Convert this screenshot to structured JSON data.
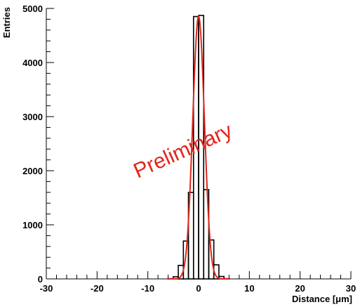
{
  "chart_data": {
    "type": "bar",
    "xlabel": "Distance [μm]",
    "ylabel": "Entries",
    "xlim": [
      -30,
      30
    ],
    "ylim": [
      0,
      5000
    ],
    "xticks": [
      -30,
      -20,
      -10,
      0,
      10,
      20,
      30
    ],
    "xtick_labels": [
      "-30",
      "-20",
      "-10",
      "0",
      "10",
      "20",
      "30"
    ],
    "yticks": [
      0,
      1000,
      2000,
      3000,
      4000,
      5000
    ],
    "ytick_labels": [
      "0",
      "1000",
      "2000",
      "3000",
      "4000",
      "5000"
    ],
    "grid": false,
    "annotation": "Preliminary",
    "series": [
      {
        "style": "histogram",
        "color": "#000000",
        "bin_edges": [
          -6,
          -5,
          -4,
          -3,
          -2,
          -1,
          0,
          1,
          2,
          3,
          4,
          5,
          6
        ],
        "values": [
          5,
          40,
          250,
          700,
          1600,
          4850,
          4870,
          1650,
          720,
          260,
          45,
          5
        ]
      },
      {
        "style": "fit",
        "color": "#e0261b",
        "mean": 0,
        "sigma": 1.15,
        "amplitude": 4850
      }
    ]
  }
}
